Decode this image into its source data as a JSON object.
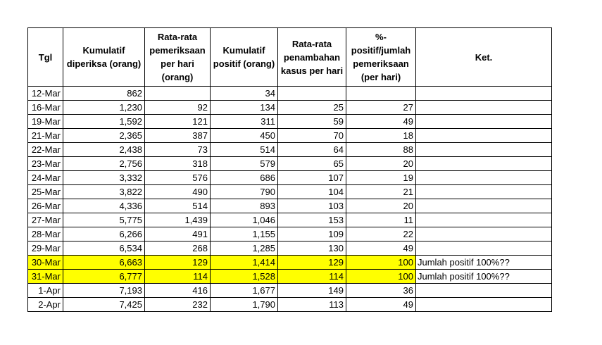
{
  "headers": [
    "Tgl",
    "Kumulatif diperiksa (orang)",
    "Rata-rata pemeriksaan per hari (orang)",
    "Kumulatif positif (orang)",
    "Rata-rata penambahan kasus per hari",
    "%-positif/jumlah pemeriksaan (per hari)",
    "Ket."
  ],
  "rows": [
    {
      "tgl": "12-Mar",
      "kum_diperiksa": "862",
      "rata_pemeriksaan": "",
      "kum_positif": "34",
      "rata_kasus": "",
      "pct_positif": "",
      "ket": "",
      "highlight": false
    },
    {
      "tgl": "16-Mar",
      "kum_diperiksa": "1,230",
      "rata_pemeriksaan": "92",
      "kum_positif": "134",
      "rata_kasus": "25",
      "pct_positif": "27",
      "ket": "",
      "highlight": false
    },
    {
      "tgl": "19-Mar",
      "kum_diperiksa": "1,592",
      "rata_pemeriksaan": "121",
      "kum_positif": "311",
      "rata_kasus": "59",
      "pct_positif": "49",
      "ket": "",
      "highlight": false
    },
    {
      "tgl": "21-Mar",
      "kum_diperiksa": "2,365",
      "rata_pemeriksaan": "387",
      "kum_positif": "450",
      "rata_kasus": "70",
      "pct_positif": "18",
      "ket": "",
      "highlight": false
    },
    {
      "tgl": "22-Mar",
      "kum_diperiksa": "2,438",
      "rata_pemeriksaan": "73",
      "kum_positif": "514",
      "rata_kasus": "64",
      "pct_positif": "88",
      "ket": "",
      "highlight": false
    },
    {
      "tgl": "23-Mar",
      "kum_diperiksa": "2,756",
      "rata_pemeriksaan": "318",
      "kum_positif": "579",
      "rata_kasus": "65",
      "pct_positif": "20",
      "ket": "",
      "highlight": false
    },
    {
      "tgl": "24-Mar",
      "kum_diperiksa": "3,332",
      "rata_pemeriksaan": "576",
      "kum_positif": "686",
      "rata_kasus": "107",
      "pct_positif": "19",
      "ket": "",
      "highlight": false
    },
    {
      "tgl": "25-Mar",
      "kum_diperiksa": "3,822",
      "rata_pemeriksaan": "490",
      "kum_positif": "790",
      "rata_kasus": "104",
      "pct_positif": "21",
      "ket": "",
      "highlight": false
    },
    {
      "tgl": "26-Mar",
      "kum_diperiksa": "4,336",
      "rata_pemeriksaan": "514",
      "kum_positif": "893",
      "rata_kasus": "103",
      "pct_positif": "20",
      "ket": "",
      "highlight": false
    },
    {
      "tgl": "27-Mar",
      "kum_diperiksa": "5,775",
      "rata_pemeriksaan": "1,439",
      "kum_positif": "1,046",
      "rata_kasus": "153",
      "pct_positif": "11",
      "ket": "",
      "highlight": false
    },
    {
      "tgl": "28-Mar",
      "kum_diperiksa": "6,266",
      "rata_pemeriksaan": "491",
      "kum_positif": "1,155",
      "rata_kasus": "109",
      "pct_positif": "22",
      "ket": "",
      "highlight": false
    },
    {
      "tgl": "29-Mar",
      "kum_diperiksa": "6,534",
      "rata_pemeriksaan": "268",
      "kum_positif": "1,285",
      "rata_kasus": "130",
      "pct_positif": "49",
      "ket": "",
      "highlight": false
    },
    {
      "tgl": "30-Mar",
      "kum_diperiksa": "6,663",
      "rata_pemeriksaan": "129",
      "kum_positif": "1,414",
      "rata_kasus": "129",
      "pct_positif": "100",
      "ket": "Jumlah positif 100%??",
      "highlight": true
    },
    {
      "tgl": "31-Mar",
      "kum_diperiksa": "6,777",
      "rata_pemeriksaan": "114",
      "kum_positif": "1,528",
      "rata_kasus": "114",
      "pct_positif": "100",
      "ket": "Jumlah positif 100%??",
      "highlight": true
    },
    {
      "tgl": "1-Apr",
      "kum_diperiksa": "7,193",
      "rata_pemeriksaan": "416",
      "kum_positif": "1,677",
      "rata_kasus": "149",
      "pct_positif": "36",
      "ket": "",
      "highlight": false
    },
    {
      "tgl": "2-Apr",
      "kum_diperiksa": "7,425",
      "rata_pemeriksaan": "232",
      "kum_positif": "1,790",
      "rata_kasus": "113",
      "pct_positif": "49",
      "ket": "",
      "highlight": false
    }
  ],
  "colors": {
    "highlight": "#ffff00",
    "grid": "#000000"
  }
}
